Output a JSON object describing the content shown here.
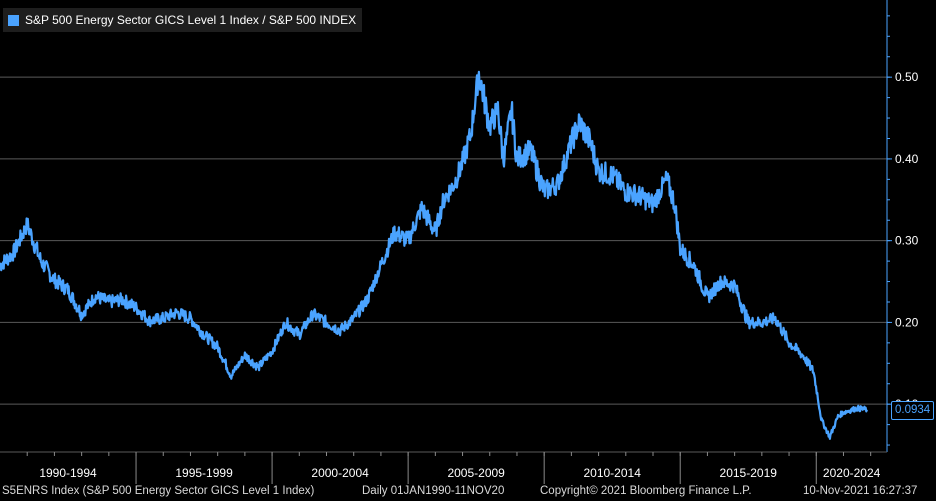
{
  "colors": {
    "background": "#000000",
    "series": "#4aa3ff",
    "grid": "#5a5a5a",
    "axis": "#4aa3ff",
    "text": "#ffffff"
  },
  "chart_data": {
    "type": "line",
    "title": "",
    "legend": {
      "placement": "top-left",
      "entries": [
        "S&P 500 Energy Sector GICS Level 1 Index / S&P 500 INDEX"
      ]
    },
    "series": [
      {
        "name": "S&P 500 Energy Sector GICS Level 1 Index / S&P 500 INDEX",
        "x": [
          1990.0,
          1990.5,
          1991.0,
          1991.5,
          1992.0,
          1992.5,
          1993.0,
          1993.5,
          1994.0,
          1994.5,
          1995.0,
          1995.5,
          1996.0,
          1996.5,
          1997.0,
          1997.5,
          1998.0,
          1998.5,
          1999.0,
          1999.5,
          2000.0,
          2000.5,
          2001.0,
          2001.5,
          2002.0,
          2002.5,
          2003.0,
          2003.5,
          2004.0,
          2004.5,
          2005.0,
          2005.5,
          2006.0,
          2006.3,
          2006.7,
          2007.0,
          2007.3,
          2007.6,
          2008.0,
          2008.3,
          2008.5,
          2008.8,
          2009.0,
          2009.5,
          2010.0,
          2010.5,
          2011.0,
          2011.3,
          2011.7,
          2012.0,
          2012.5,
          2013.0,
          2013.5,
          2014.0,
          2014.5,
          2014.8,
          2015.0,
          2015.5,
          2016.0,
          2016.5,
          2017.0,
          2017.5,
          2018.0,
          2018.5,
          2019.0,
          2019.5,
          2019.9,
          2020.2,
          2020.5,
          2020.8,
          2021.0,
          2021.5,
          2021.86
        ],
        "values": [
          0.27,
          0.285,
          0.32,
          0.275,
          0.252,
          0.24,
          0.21,
          0.232,
          0.225,
          0.228,
          0.218,
          0.202,
          0.205,
          0.212,
          0.205,
          0.185,
          0.17,
          0.135,
          0.16,
          0.145,
          0.165,
          0.2,
          0.185,
          0.21,
          0.2,
          0.19,
          0.205,
          0.228,
          0.27,
          0.31,
          0.3,
          0.34,
          0.31,
          0.35,
          0.37,
          0.395,
          0.43,
          0.505,
          0.44,
          0.46,
          0.4,
          0.46,
          0.4,
          0.41,
          0.36,
          0.37,
          0.42,
          0.445,
          0.42,
          0.385,
          0.38,
          0.36,
          0.355,
          0.345,
          0.375,
          0.345,
          0.29,
          0.27,
          0.23,
          0.25,
          0.245,
          0.2,
          0.2,
          0.205,
          0.175,
          0.16,
          0.14,
          0.08,
          0.06,
          0.085,
          0.09,
          0.095,
          0.0934
        ]
      }
    ],
    "x_tick_labels": [
      "1990-1994",
      "1995-1999",
      "2000-2004",
      "2005-2009",
      "2010-2014",
      "2015-2019",
      "2020-2024"
    ],
    "x_tick_boundaries": [
      1995,
      2000,
      2005,
      2010,
      2015,
      2020
    ],
    "xlim": [
      1990.0,
      2022.6
    ],
    "y_ticks": [
      0.1,
      0.2,
      0.3,
      0.4,
      0.5
    ],
    "y_tick_labels": [
      "0.10",
      "0.20",
      "0.30",
      "0.40",
      "0.50"
    ],
    "ylim": [
      0.0415,
      0.5944
    ],
    "y_axis_side": "right",
    "grid": true,
    "last_value_label": "0.0934"
  },
  "footer": {
    "ticker": "S5ENRS Index (S&P 500 Energy Sector GICS Level 1 Index)",
    "range": "Daily 01JAN1990-11NOV20",
    "copyright": "Copyright© 2021 Bloomberg Finance L.P.",
    "timestamp": "10-Nov-2021 16:27:37"
  }
}
